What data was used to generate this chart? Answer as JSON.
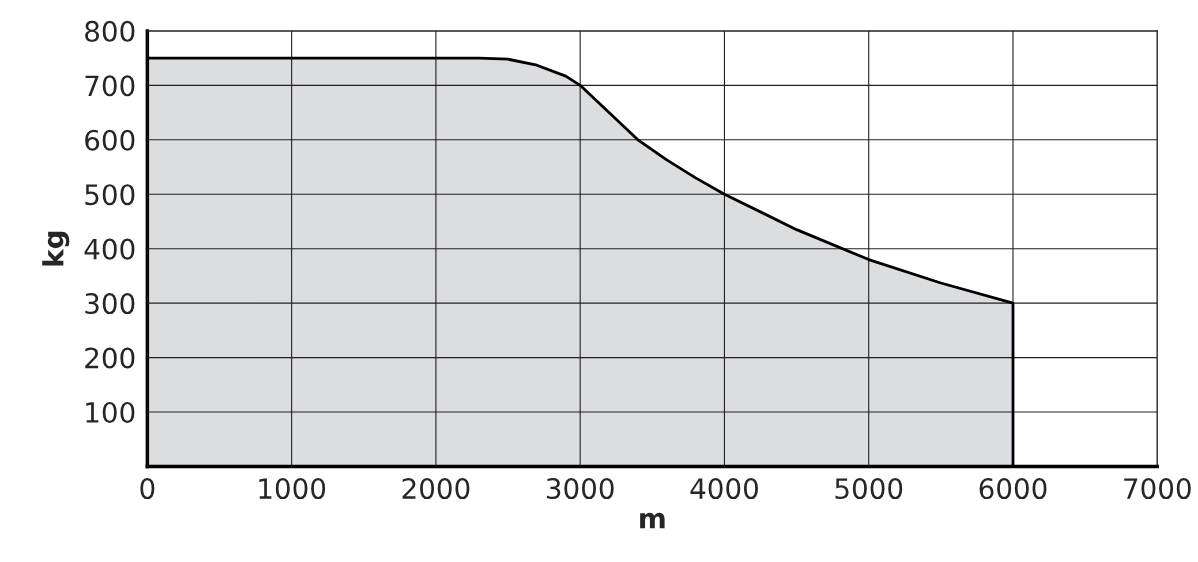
{
  "chart_data": {
    "type": "area",
    "xlabel": "m",
    "ylabel": "kg",
    "x": [
      0,
      500,
      1000,
      1500,
      2000,
      2300,
      2500,
      2700,
      2900,
      3000,
      3200,
      3400,
      3600,
      3800,
      4000,
      4500,
      5000,
      5500,
      6000,
      6000
    ],
    "series": [
      {
        "color": "#dcdde0",
        "values": [
          750,
          750,
          750,
          750,
          750,
          750,
          748,
          737,
          717,
          700,
          650,
          600,
          563,
          530,
          500,
          435,
          380,
          337,
          300,
          0
        ]
      }
    ],
    "xlim": [
      0,
      7000
    ],
    "ylim": [
      0,
      800
    ],
    "xticks": [
      0,
      1000,
      2000,
      3000,
      4000,
      5000,
      6000,
      7000
    ],
    "yticks": [
      100,
      200,
      300,
      400,
      500,
      600,
      700,
      800
    ],
    "grid": true,
    "legend": false
  }
}
